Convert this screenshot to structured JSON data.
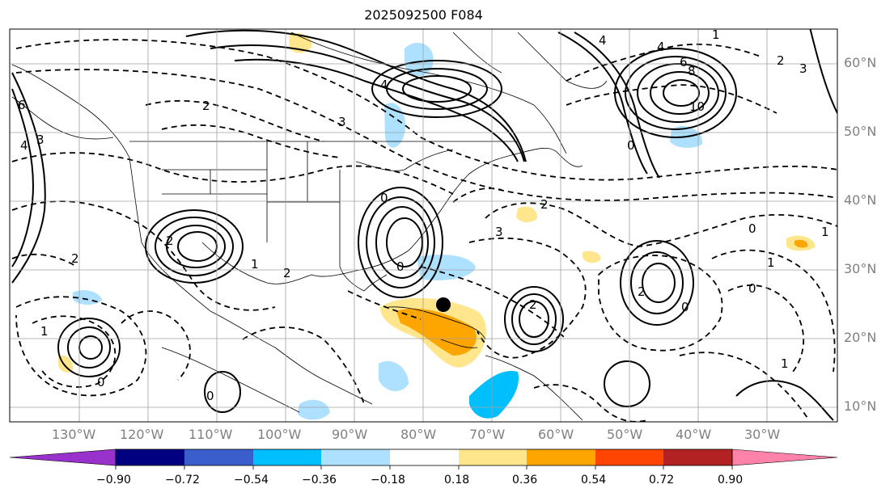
{
  "title": "2025092500 F084",
  "longitude_labels": [
    "130°W",
    "120°W",
    "110°W",
    "100°W",
    "90°W",
    "80°W",
    "70°W",
    "60°W",
    "50°W",
    "40°W",
    "30°W"
  ],
  "latitude_labels": [
    "60°N",
    "50°N",
    "40°N",
    "30°N",
    "20°N",
    "10°N"
  ],
  "colorbar": {
    "tick_labels": [
      "−0.90",
      "−0.72",
      "−0.54",
      "−0.36",
      "−0.18",
      "0.18",
      "0.36",
      "0.54",
      "0.72",
      "0.90"
    ],
    "colors": [
      "#9932cc",
      "#000080",
      "#3a5fcd",
      "#00bfff",
      "#ade1ff",
      "#ffffff",
      "#ffe68c",
      "#ffa500",
      "#ff4500",
      "#b22222",
      "#ff82ab"
    ]
  },
  "contour_labels": [
    "2",
    "3",
    "4",
    "6",
    "8",
    "10",
    "0",
    "1",
    "2",
    "3",
    "4",
    "4",
    "6",
    "4",
    "3",
    "2",
    "0",
    "0",
    "1",
    "2",
    "2",
    "3",
    "2",
    "0",
    "1",
    "2",
    "0",
    "1",
    "0",
    "2",
    "1",
    "1",
    "0",
    "0"
  ],
  "hurricane_marker": "storm-center"
}
